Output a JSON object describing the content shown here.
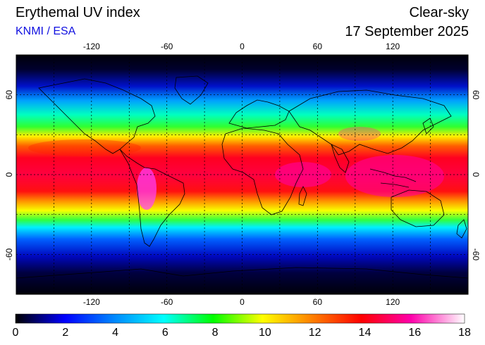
{
  "header": {
    "title": "Erythemal UV index",
    "source": "KNMI / ESA",
    "condition": "Clear-sky",
    "date": "17 September 2025"
  },
  "map": {
    "projection": "equirectangular",
    "lon_range": [
      -180,
      180
    ],
    "lat_range": [
      -90,
      90
    ],
    "lon_ticks": [
      "-120",
      "-60",
      "0",
      "60",
      "120"
    ],
    "lat_ticks": [
      "60",
      "0",
      "-60"
    ],
    "grid_lines": "dotted",
    "grid_spacing_deg": 30,
    "ocean_background_min": "#000010"
  },
  "colorbar": {
    "min": 0,
    "max": 18,
    "labels": [
      "0",
      "2",
      "4",
      "6",
      "8",
      "10",
      "12",
      "14",
      "16",
      "18"
    ],
    "colors": [
      "#000000",
      "#0000ff",
      "#0088ff",
      "#00ffff",
      "#00ff00",
      "#ffff00",
      "#ff8000",
      "#ff0000",
      "#ff00aa",
      "#ffffff"
    ]
  }
}
